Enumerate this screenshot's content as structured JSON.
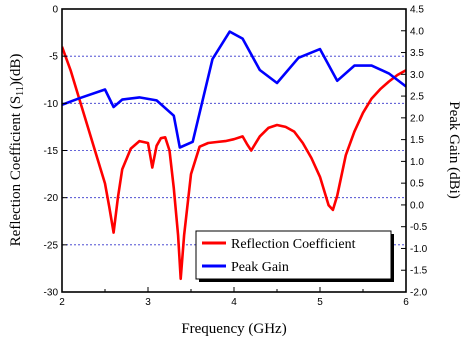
{
  "chart_data": {
    "type": "line",
    "xlabel": "Frequency (GHz)",
    "ylabel_left_main": "Reflection Coefficient (S",
    "ylabel_left_sub": "11",
    "ylabel_left_tail": ")(dB)",
    "ylabel_right": "Peak Gain (dBi)",
    "xlim": [
      2,
      6
    ],
    "ylim_left": [
      -30,
      0
    ],
    "ylim_right": [
      -2.0,
      4.5
    ],
    "x_ticks": [
      2,
      3,
      4,
      5,
      6
    ],
    "y_left_ticks": [
      0,
      -5,
      -10,
      -15,
      -20,
      -25,
      -30
    ],
    "y_right_ticks": [
      4.5,
      4.0,
      3.5,
      3.0,
      2.5,
      2.0,
      1.5,
      1.0,
      0.5,
      0.0,
      -0.5,
      -1.0,
      -1.5,
      -2.0
    ],
    "y_right_tick_labels": [
      "4.5",
      "4.0",
      "3.5",
      "3.0",
      "2.5",
      "2.0",
      "1.5",
      "1.0",
      "0.5",
      "0.0",
      "-0.5",
      "-1.0",
      "-1.5",
      "-2.0"
    ],
    "grid": "horizontal dotted, blue",
    "legend_position": "bottom-right",
    "series": [
      {
        "name": "Reflection Coefficient",
        "color": "#ff0000",
        "axis": "left",
        "points": [
          [
            2.0,
            -4.0
          ],
          [
            2.1,
            -6.5
          ],
          [
            2.2,
            -9.5
          ],
          [
            2.3,
            -12.5
          ],
          [
            2.4,
            -15.5
          ],
          [
            2.5,
            -18.5
          ],
          [
            2.55,
            -21.0
          ],
          [
            2.6,
            -23.7
          ],
          [
            2.65,
            -20.0
          ],
          [
            2.7,
            -17.0
          ],
          [
            2.8,
            -14.8
          ],
          [
            2.9,
            -14.0
          ],
          [
            3.0,
            -14.2
          ],
          [
            3.05,
            -16.8
          ],
          [
            3.1,
            -14.5
          ],
          [
            3.15,
            -13.7
          ],
          [
            3.2,
            -13.6
          ],
          [
            3.25,
            -15.0
          ],
          [
            3.3,
            -19.0
          ],
          [
            3.35,
            -24.0
          ],
          [
            3.38,
            -28.6
          ],
          [
            3.42,
            -24.0
          ],
          [
            3.5,
            -17.5
          ],
          [
            3.6,
            -14.6
          ],
          [
            3.7,
            -14.2
          ],
          [
            3.8,
            -14.1
          ],
          [
            3.9,
            -14.0
          ],
          [
            4.0,
            -13.8
          ],
          [
            4.1,
            -13.5
          ],
          [
            4.15,
            -14.3
          ],
          [
            4.2,
            -15.0
          ],
          [
            4.3,
            -13.5
          ],
          [
            4.4,
            -12.6
          ],
          [
            4.5,
            -12.3
          ],
          [
            4.6,
            -12.5
          ],
          [
            4.7,
            -13.0
          ],
          [
            4.8,
            -14.2
          ],
          [
            4.9,
            -15.8
          ],
          [
            5.0,
            -17.8
          ],
          [
            5.1,
            -20.8
          ],
          [
            5.15,
            -21.3
          ],
          [
            5.2,
            -19.8
          ],
          [
            5.3,
            -15.5
          ],
          [
            5.4,
            -13.0
          ],
          [
            5.5,
            -11.0
          ],
          [
            5.6,
            -9.5
          ],
          [
            5.7,
            -8.5
          ],
          [
            5.8,
            -7.7
          ],
          [
            5.9,
            -7.0
          ],
          [
            6.0,
            -6.5
          ]
        ]
      },
      {
        "name": "Peak Gain",
        "color": "#0000ff",
        "axis": "right",
        "points": [
          [
            2.0,
            2.3
          ],
          [
            2.2,
            2.45
          ],
          [
            2.5,
            2.65
          ],
          [
            2.6,
            2.25
          ],
          [
            2.7,
            2.42
          ],
          [
            2.9,
            2.47
          ],
          [
            3.1,
            2.4
          ],
          [
            3.3,
            2.05
          ],
          [
            3.37,
            1.32
          ],
          [
            3.52,
            1.45
          ],
          [
            3.75,
            3.35
          ],
          [
            3.95,
            3.98
          ],
          [
            4.1,
            3.82
          ],
          [
            4.3,
            3.1
          ],
          [
            4.5,
            2.8
          ],
          [
            4.75,
            3.38
          ],
          [
            5.0,
            3.58
          ],
          [
            5.2,
            2.85
          ],
          [
            5.4,
            3.2
          ],
          [
            5.6,
            3.2
          ],
          [
            5.8,
            3.02
          ],
          [
            6.0,
            2.72
          ]
        ]
      }
    ]
  }
}
